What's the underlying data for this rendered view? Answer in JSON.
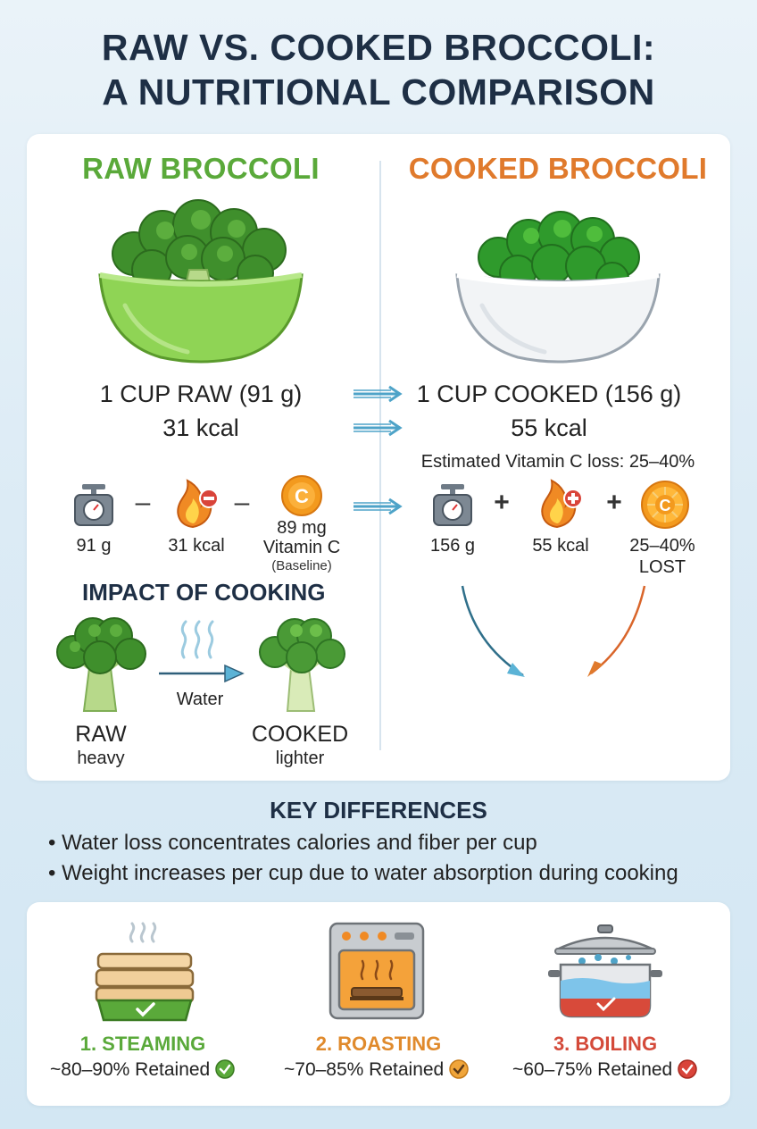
{
  "title": {
    "line1": "RAW VS. COOKED BROCCOLI:",
    "line2": "A NUTRITIONAL COMPARISON"
  },
  "raw": {
    "heading": "RAW BROCCOLI",
    "serving": "1 CUP RAW (91 g)",
    "calories": "31 kcal",
    "stat_weight": "91 g",
    "stat_kcal": "31 kcal",
    "stat_vitc_amount": "89 mg",
    "stat_vitc_label": "Vitamin C",
    "stat_vitc_note": "(Baseline)",
    "minus1": "–",
    "minus2": "–"
  },
  "cooked": {
    "heading": "COOKED BROCCOLI",
    "serving": "1 CUP COOKED (156 g)",
    "calories": "55 kcal",
    "vitc_loss_note": "Estimated Vitamin C loss: 25–40%",
    "stat_weight": "156 g",
    "stat_kcal": "55 kcal",
    "stat_vitc_pct": "25–40%",
    "stat_vitc_lost": "LOST",
    "plus1": "+",
    "plus2": "+"
  },
  "impact": {
    "heading": "IMPACT OF COOKING",
    "arrow_label": "Water",
    "raw_label": "RAW",
    "raw_sub": "heavy",
    "cooked_label": "COOKED",
    "cooked_sub": "lighter"
  },
  "key_differences": {
    "heading": "KEY DIFFERENCES",
    "items": [
      "• Water loss concentrates calories and fiber per cup",
      "• Weight increases per cup due to water absorption during cooking"
    ]
  },
  "methods": [
    {
      "label": "1. STEAMING",
      "retained": "~80–90% Retained",
      "color": "#5aa93a"
    },
    {
      "label": "2. ROASTING",
      "retained": "~70–85% Retained",
      "color": "#e08a2c"
    },
    {
      "label": "3. BOILING",
      "retained": "~60–75% Retained",
      "color": "#d44a3a"
    }
  ],
  "icons": {
    "scale": "kitchen-scale-icon",
    "flame": "flame-icon",
    "vitamin": "vitamin-c-icon",
    "orange": "orange-slice-icon",
    "steam": "steam-icon",
    "check": "checkmark-icon"
  },
  "colors": {
    "raw_green": "#5aa93a",
    "cooked_orange": "#e07a2c",
    "arrow_blue": "#4ea3c8",
    "title_navy": "#1e2f45"
  }
}
